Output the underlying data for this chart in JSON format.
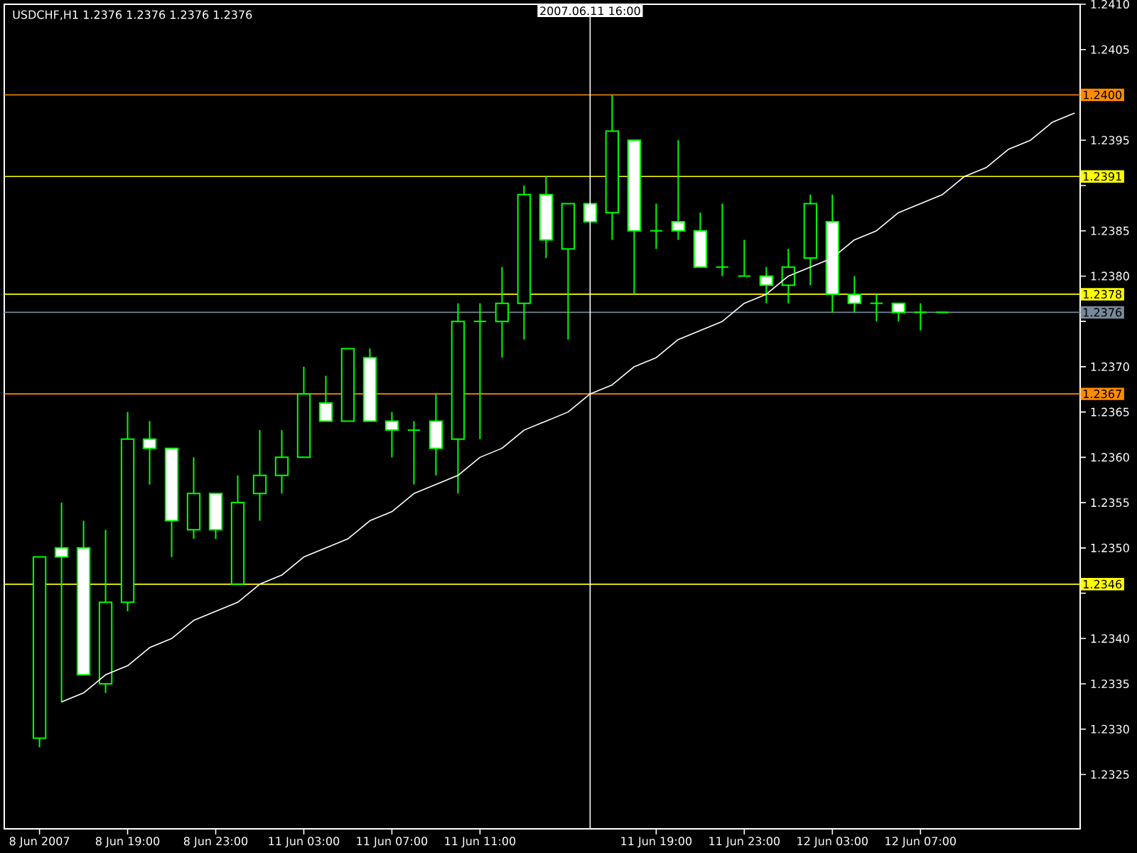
{
  "chart_data": {
    "type": "candlestick",
    "title": "USDCHF,H1  1.2376 1.2376 1.2376 1.2376",
    "categories": [
      "8 Jun 2007",
      null,
      null,
      null,
      "8 Jun 19:00",
      null,
      null,
      null,
      "8 Jun 23:00",
      null,
      null,
      null,
      "11 Jun 03:00",
      null,
      null,
      null,
      "11 Jun 07:00",
      null,
      null,
      null,
      "11 Jun 11:00",
      null,
      null,
      null,
      null,
      null,
      null,
      null,
      "11 Jun 19:00",
      null,
      null,
      null,
      "11 Jun 23:00",
      null,
      null,
      null,
      "12 Jun 03:00",
      null,
      null,
      null,
      "12 Jun 07:00",
      null,
      null,
      null,
      null,
      null,
      null,
      null
    ],
    "color": "#00ff00",
    "ohlc": [
      [
        1.2329,
        1.2349,
        1.2328,
        1.2349
      ],
      [
        1.235,
        1.2355,
        1.2333,
        1.2349
      ],
      [
        1.235,
        1.2353,
        1.2336,
        1.2336
      ],
      [
        1.2335,
        1.2352,
        1.2334,
        1.2344
      ],
      [
        1.2344,
        1.2365,
        1.2343,
        1.2362
      ],
      [
        1.2362,
        1.2364,
        1.2357,
        1.2361
      ],
      [
        1.2361,
        1.2361,
        1.2349,
        1.2353
      ],
      [
        1.2352,
        1.236,
        1.2351,
        1.2356
      ],
      [
        1.2356,
        1.2356,
        1.2351,
        1.2352
      ],
      [
        1.2346,
        1.2358,
        1.2346,
        1.2355
      ],
      [
        1.2356,
        1.2363,
        1.2353,
        1.2358
      ],
      [
        1.2358,
        1.2363,
        1.2356,
        1.236
      ],
      [
        1.236,
        1.237,
        1.236,
        1.2367
      ],
      [
        1.2366,
        1.2369,
        1.2364,
        1.2364
      ],
      [
        1.2364,
        1.2372,
        1.2364,
        1.2372
      ],
      [
        1.2371,
        1.2372,
        1.2364,
        1.2364
      ],
      [
        1.2364,
        1.2365,
        1.236,
        1.2363
      ],
      [
        1.2363,
        1.2364,
        1.2357,
        1.2363
      ],
      [
        1.2364,
        1.2367,
        1.2358,
        1.2361
      ],
      [
        1.2362,
        1.2377,
        1.2356,
        1.2375
      ],
      [
        1.2375,
        1.2377,
        1.2362,
        1.2375
      ],
      [
        1.2375,
        1.2381,
        1.2371,
        1.2377
      ],
      [
        1.2377,
        1.239,
        1.2373,
        1.2389
      ],
      [
        1.2389,
        1.2391,
        1.2382,
        1.2384
      ],
      [
        1.2383,
        1.2388,
        1.2373,
        1.2388
      ],
      [
        1.2388,
        1.2388,
        1.2386,
        1.2386
      ],
      [
        1.2387,
        1.24,
        1.2384,
        1.2396
      ],
      [
        1.2395,
        1.2395,
        1.2378,
        1.2385
      ],
      [
        1.2385,
        1.2388,
        1.2383,
        1.2385
      ],
      [
        1.2386,
        1.2395,
        1.2384,
        1.2385
      ],
      [
        1.2385,
        1.2387,
        1.2381,
        1.2381
      ],
      [
        1.2381,
        1.2388,
        1.238,
        1.2381
      ],
      [
        1.238,
        1.2384,
        1.238,
        1.238
      ],
      [
        1.238,
        1.2381,
        1.2377,
        1.2379
      ],
      [
        1.2379,
        1.2383,
        1.2377,
        1.2381
      ],
      [
        1.2382,
        1.2389,
        1.2379,
        1.2388
      ],
      [
        1.2386,
        1.2389,
        1.2376,
        1.2378
      ],
      [
        1.2378,
        1.238,
        1.2376,
        1.2377
      ],
      [
        1.2377,
        1.2378,
        1.2375,
        1.2377
      ],
      [
        1.2377,
        1.2377,
        1.2375,
        1.2376
      ],
      [
        1.2376,
        1.2377,
        1.2374,
        1.2376
      ],
      [
        1.2376,
        1.2376,
        1.2376,
        1.2376
      ],
      null,
      null,
      null,
      null,
      null,
      null
    ],
    "series": [
      {
        "type": "line",
        "color": "#ffffff",
        "values": [
          null,
          1.2333,
          1.2334,
          1.2336,
          1.2337,
          1.2339,
          1.234,
          1.2342,
          1.2343,
          1.2344,
          1.2346,
          1.2347,
          1.2349,
          1.235,
          1.2351,
          1.2353,
          1.2354,
          1.2356,
          1.2357,
          1.2358,
          1.236,
          1.2361,
          1.2363,
          1.2364,
          1.2365,
          1.2367,
          1.2368,
          1.237,
          1.2371,
          1.2373,
          1.2374,
          1.2375,
          1.2377,
          1.2378,
          1.238,
          1.2381,
          1.2382,
          1.2384,
          1.2385,
          1.2387,
          1.2388,
          1.2389,
          1.2391,
          1.2392,
          1.2394,
          1.2395,
          1.2397,
          1.2398
        ]
      }
    ],
    "ylim": [
      1.2319,
      1.241
    ],
    "yticks": [
      1.2325,
      {
        "value": 1.233,
        "label": "1.2330"
      },
      1.2335,
      {
        "value": 1.234,
        "label": "1.2340"
      },
      {
        "value": 1.2345,
        "label": null
      },
      {
        "value": 1.235,
        "label": "1.2350"
      },
      1.2355,
      {
        "value": 1.236,
        "label": "1.2360"
      },
      1.2365,
      {
        "value": 1.237,
        "label": "1.2370"
      },
      {
        "value": 1.2375,
        "label": null
      },
      {
        "value": 1.238,
        "label": "1.2380"
      },
      1.2385,
      {
        "value": 1.239,
        "label": null
      },
      1.2395,
      {
        "value": 1.24,
        "label": null
      },
      1.2405,
      {
        "value": 1.241,
        "label": "1.2410"
      }
    ],
    "annotations": [
      "2007.06.11 16:00"
    ],
    "ref_lines": [
      {
        "axis": "y",
        "value": 1.24,
        "label": "1.2400",
        "color": "#ff8c00"
      },
      {
        "axis": "y",
        "value": 1.2391,
        "label": "1.2391",
        "color": "#ffff00"
      },
      {
        "axis": "y",
        "value": 1.2378,
        "label": "1.2378",
        "color": "#ffff00"
      },
      {
        "axis": "y",
        "value": 1.2376,
        "label": "1.2376",
        "color": "#778899"
      },
      {
        "axis": "y",
        "value": 1.2367,
        "label": "1.2367",
        "color": "#ff8c00"
      },
      {
        "axis": "y",
        "value": 1.2346,
        "label": "1.2346",
        "color": "#ffff00"
      }
    ]
  }
}
